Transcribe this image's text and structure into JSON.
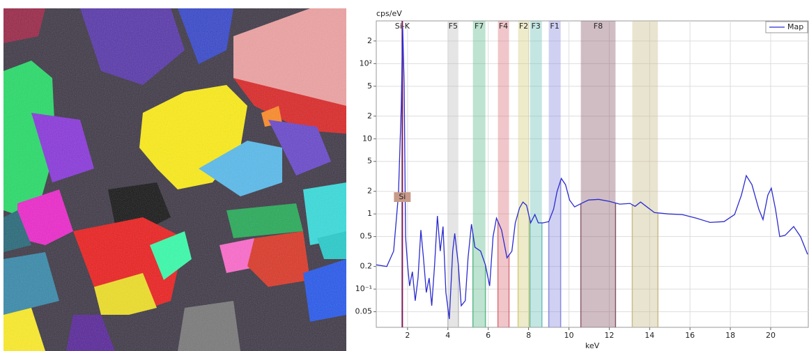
{
  "chart_data": {
    "type": "line",
    "y_label": "cps/eV",
    "x_label": "keV",
    "log_y": true,
    "grid": true,
    "legend": "upper right",
    "xlim": [
      0.45,
      21.9
    ],
    "ylim": [
      0.031,
      370
    ],
    "xticks": [
      2,
      4,
      6,
      8,
      10,
      12,
      14,
      16,
      18,
      20
    ],
    "yticks": [
      {
        "value": 200,
        "label": "2"
      },
      {
        "value": 100,
        "label": "10²"
      },
      {
        "value": 50,
        "label": "5"
      },
      {
        "value": 20,
        "label": "2"
      },
      10,
      5,
      2,
      1,
      0.5,
      0.2,
      {
        "value": 0.1,
        "label": "10⁻¹"
      },
      0.05
    ],
    "x": [
      0.45,
      0.97,
      1.31,
      1.55,
      1.69,
      1.76,
      1.83,
      1.9,
      2.0,
      2.1,
      2.24,
      2.38,
      2.52,
      2.66,
      2.79,
      2.93,
      3.07,
      3.2,
      3.34,
      3.48,
      3.62,
      3.76,
      3.9,
      4.07,
      4.24,
      4.34,
      4.52,
      4.66,
      4.86,
      5.0,
      5.17,
      5.34,
      5.62,
      5.86,
      6.07,
      6.24,
      6.41,
      6.66,
      6.93,
      7.17,
      7.34,
      7.55,
      7.72,
      7.9,
      8.1,
      8.31,
      8.48,
      8.72,
      9.0,
      9.24,
      9.41,
      9.62,
      9.83,
      10.03,
      10.28,
      10.62,
      10.97,
      11.48,
      12.0,
      12.52,
      13.03,
      13.28,
      13.55,
      13.83,
      14.24,
      14.93,
      15.62,
      16.31,
      17.0,
      17.69,
      18.21,
      18.55,
      18.79,
      19.07,
      19.41,
      19.62,
      19.86,
      20.03,
      20.24,
      20.45,
      20.72,
      21.14,
      21.48,
      21.83
    ],
    "series": [
      {
        "name": "Map",
        "color": "#2a2ad0",
        "values": [
          0.21,
          0.2,
          0.32,
          1.8,
          28,
          300,
          54,
          0.5,
          0.21,
          0.11,
          0.17,
          0.07,
          0.14,
          0.61,
          0.26,
          0.09,
          0.14,
          0.06,
          0.21,
          0.94,
          0.32,
          0.68,
          0.09,
          0.04,
          0.32,
          0.55,
          0.21,
          0.06,
          0.07,
          0.26,
          0.73,
          0.36,
          0.32,
          0.21,
          0.11,
          0.5,
          0.88,
          0.61,
          0.26,
          0.32,
          0.76,
          1.2,
          1.44,
          1.3,
          0.76,
          0.98,
          0.76,
          0.76,
          0.79,
          1.16,
          1.98,
          2.97,
          2.45,
          1.53,
          1.24,
          1.38,
          1.53,
          1.56,
          1.47,
          1.35,
          1.38,
          1.26,
          1.44,
          1.26,
          1.04,
          1.0,
          0.98,
          0.88,
          0.77,
          0.79,
          0.98,
          1.78,
          3.23,
          2.45,
          1.16,
          0.84,
          1.78,
          2.2,
          1.16,
          0.5,
          0.52,
          0.68,
          0.5,
          0.29
        ]
      }
    ],
    "regions": [
      {
        "label": "F5",
        "start": 4.0,
        "end": 4.52,
        "color": "#bdbdbd"
      },
      {
        "label": "F7",
        "start": 5.24,
        "end": 5.86,
        "color": "#5cb88a"
      },
      {
        "label": "F4",
        "start": 6.48,
        "end": 7.03,
        "color": "#d9707a"
      },
      {
        "label": "F2",
        "start": 7.48,
        "end": 8.03,
        "color": "#d2cc7a"
      },
      {
        "label": "F3",
        "start": 8.07,
        "end": 8.66,
        "color": "#6cc0b8"
      },
      {
        "label": "F1",
        "start": 9.0,
        "end": 9.59,
        "color": "#8a8ae0"
      },
      {
        "label": "F8",
        "start": 10.59,
        "end": 12.31,
        "color": "#8a5a6a"
      },
      {
        "label": null,
        "start": 13.14,
        "end": 14.41,
        "color": "#c8bc8a"
      }
    ],
    "lines": [
      {
        "label": "Si-K",
        "tag": "Si",
        "x": 1.74,
        "color": "#7a1a5a"
      }
    ]
  }
}
